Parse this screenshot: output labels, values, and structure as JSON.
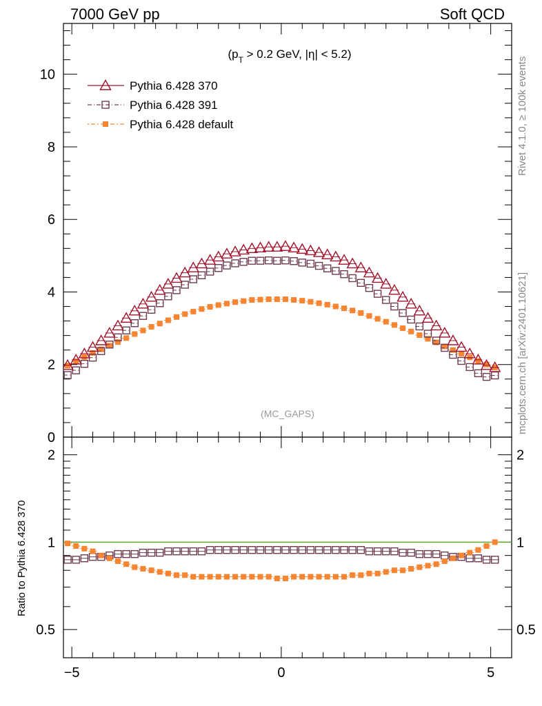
{
  "header": {
    "left": "7000 GeV pp",
    "right": "Soft QCD"
  },
  "side_labels": {
    "rivet": "Rivet 4.1.0, ≥ 100k events",
    "mcplots": "mcplots.cern.ch [arXiv:2401.10621]"
  },
  "chart_data": {
    "type": "scatter",
    "cut_label": "(p_T > 0.2 GeV, |η| < 5.2)",
    "analysis_label": "(MC_GAPS)",
    "xlim": [
      -5.2,
      5.5
    ],
    "ylim": [
      0,
      11.4
    ],
    "ratio_ylim": [
      0.4,
      2.3
    ],
    "ratio_ylabel": "Ratio to Pythia 6.428 370",
    "x_ticks": [
      -5,
      0,
      5
    ],
    "x_tick_labels": [
      "−5",
      "0",
      "5"
    ],
    "y_ticks": [
      0,
      2,
      4,
      6,
      8,
      10
    ],
    "y_tick_labels": [
      "0",
      "2",
      "4",
      "6",
      "8",
      "10"
    ],
    "ratio_ticks": [
      0.5,
      1,
      2
    ],
    "ratio_tick_labels": [
      "0.5",
      "1",
      "2"
    ],
    "colors": {
      "pythia370": "#a0112a",
      "pythia391": "#6b3a50",
      "pythia_default": "#f58532",
      "reference_line": "#5ea52a"
    },
    "x": [
      -5.1,
      -4.9,
      -4.7,
      -4.5,
      -4.3,
      -4.1,
      -3.9,
      -3.7,
      -3.5,
      -3.3,
      -3.1,
      -2.9,
      -2.7,
      -2.5,
      -2.3,
      -2.1,
      -1.9,
      -1.7,
      -1.5,
      -1.3,
      -1.1,
      -0.9,
      -0.7,
      -0.5,
      -0.3,
      -0.1,
      0.1,
      0.3,
      0.5,
      0.7,
      0.9,
      1.1,
      1.3,
      1.5,
      1.7,
      1.9,
      2.1,
      2.3,
      2.5,
      2.7,
      2.9,
      3.1,
      3.3,
      3.5,
      3.7,
      3.9,
      4.1,
      4.3,
      4.5,
      4.7,
      4.9,
      5.1
    ],
    "series": [
      {
        "name": "Pythia 6.428 370",
        "marker": "triangle-open",
        "values": [
          1.98,
          2.13,
          2.3,
          2.48,
          2.66,
          2.87,
          3.07,
          3.28,
          3.48,
          3.67,
          3.86,
          4.05,
          4.22,
          4.38,
          4.53,
          4.67,
          4.78,
          4.88,
          4.97,
          5.05,
          5.11,
          5.16,
          5.2,
          5.22,
          5.24,
          5.24,
          5.26,
          5.22,
          5.18,
          5.14,
          5.09,
          5.03,
          4.97,
          4.88,
          4.78,
          4.67,
          4.53,
          4.38,
          4.22,
          4.05,
          3.86,
          3.67,
          3.48,
          3.28,
          3.07,
          2.87,
          2.66,
          2.48,
          2.3,
          2.13,
          1.98,
          1.92
        ]
      },
      {
        "name": "Pythia 6.428 391",
        "marker": "square-open",
        "values": [
          1.71,
          1.84,
          2.02,
          2.19,
          2.37,
          2.55,
          2.75,
          2.94,
          3.14,
          3.34,
          3.51,
          3.69,
          3.88,
          4.05,
          4.2,
          4.35,
          4.46,
          4.56,
          4.66,
          4.73,
          4.79,
          4.83,
          4.86,
          4.86,
          4.87,
          4.86,
          4.87,
          4.85,
          4.81,
          4.78,
          4.72,
          4.65,
          4.58,
          4.49,
          4.38,
          4.25,
          4.11,
          3.95,
          3.78,
          3.6,
          3.42,
          3.24,
          3.05,
          2.85,
          2.66,
          2.46,
          2.27,
          2.1,
          1.93,
          1.76,
          1.66,
          1.7
        ]
      },
      {
        "name": "Pythia 6.428 default",
        "marker": "square-filled",
        "values": [
          1.97,
          2.09,
          2.21,
          2.32,
          2.42,
          2.52,
          2.62,
          2.73,
          2.84,
          2.94,
          3.04,
          3.13,
          3.22,
          3.31,
          3.39,
          3.46,
          3.53,
          3.59,
          3.64,
          3.68,
          3.72,
          3.75,
          3.78,
          3.79,
          3.8,
          3.8,
          3.8,
          3.78,
          3.76,
          3.73,
          3.69,
          3.65,
          3.6,
          3.55,
          3.49,
          3.42,
          3.34,
          3.26,
          3.18,
          3.09,
          3.0,
          2.91,
          2.81,
          2.71,
          2.61,
          2.5,
          2.4,
          2.3,
          2.2,
          2.1,
          2.0,
          1.92
        ]
      }
    ],
    "ratio_series": [
      {
        "name": "Pythia 6.428 391",
        "marker": "square-open",
        "values": [
          0.87,
          0.87,
          0.88,
          0.89,
          0.89,
          0.9,
          0.91,
          0.91,
          0.91,
          0.92,
          0.92,
          0.92,
          0.93,
          0.93,
          0.93,
          0.93,
          0.93,
          0.94,
          0.94,
          0.94,
          0.94,
          0.94,
          0.94,
          0.94,
          0.94,
          0.94,
          0.94,
          0.94,
          0.94,
          0.94,
          0.94,
          0.94,
          0.94,
          0.94,
          0.94,
          0.94,
          0.93,
          0.93,
          0.93,
          0.93,
          0.92,
          0.92,
          0.91,
          0.91,
          0.91,
          0.9,
          0.89,
          0.89,
          0.88,
          0.88,
          0.87,
          0.87
        ]
      },
      {
        "name": "Pythia 6.428 default",
        "marker": "square-filled",
        "values": [
          0.99,
          0.97,
          0.95,
          0.93,
          0.9,
          0.88,
          0.86,
          0.84,
          0.82,
          0.81,
          0.8,
          0.79,
          0.78,
          0.77,
          0.77,
          0.76,
          0.76,
          0.76,
          0.76,
          0.76,
          0.76,
          0.76,
          0.76,
          0.76,
          0.76,
          0.75,
          0.75,
          0.76,
          0.76,
          0.76,
          0.76,
          0.76,
          0.76,
          0.76,
          0.77,
          0.77,
          0.78,
          0.78,
          0.79,
          0.8,
          0.8,
          0.81,
          0.82,
          0.83,
          0.84,
          0.86,
          0.88,
          0.9,
          0.92,
          0.94,
          0.97,
          1.0
        ]
      }
    ]
  }
}
